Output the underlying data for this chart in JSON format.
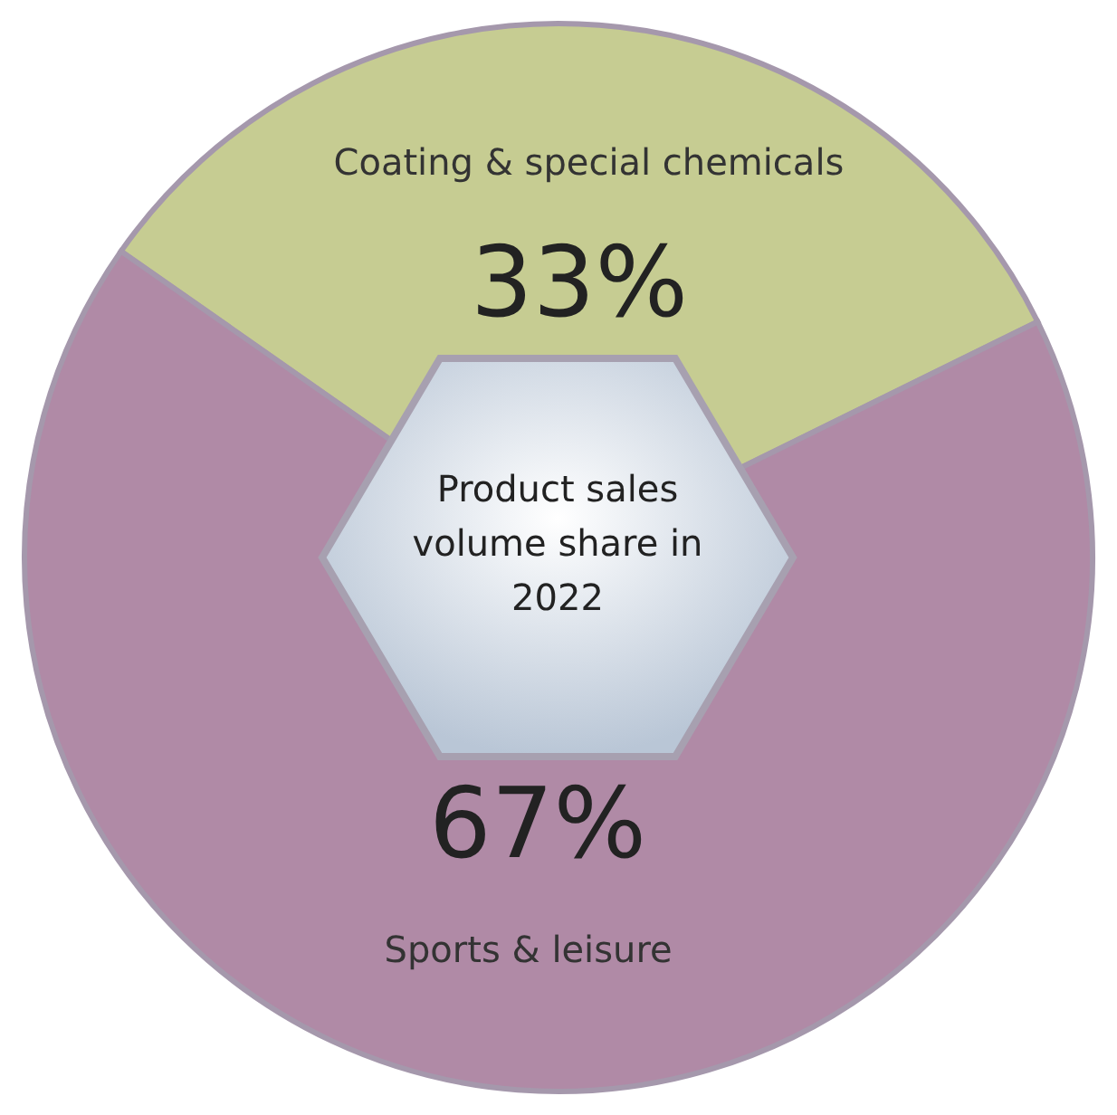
{
  "chart_data": {
    "type": "pie",
    "title": "Product sales volume share in 2022",
    "categories": [
      "Coating & special chemicals",
      "Sports & leisure"
    ],
    "values": [
      33,
      67
    ],
    "value_labels": [
      "33%",
      "67%"
    ],
    "colors": [
      "#c6cc92",
      "#b08aa6"
    ]
  }
}
